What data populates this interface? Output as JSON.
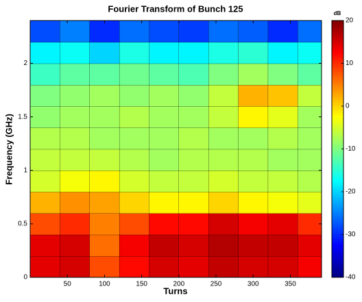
{
  "chart_data": {
    "type": "contour",
    "title": "Fourier Transform of Bunch 125",
    "x_label": "Turns",
    "y_label": "Frequency (GHz)",
    "colorbar_label": "dB",
    "xlim": [
      0,
      392
    ],
    "xticks": [
      50,
      100,
      150,
      200,
      250,
      300,
      350
    ],
    "ylim": [
      0,
      2.4
    ],
    "yticks": [
      0,
      0.5,
      1,
      1.5,
      2
    ],
    "zlim": [
      -40,
      20
    ],
    "zticks": [
      -40,
      -30,
      -20,
      -10,
      0,
      10,
      20
    ],
    "colormap": "jet",
    "x": [
      20,
      60,
      100,
      140,
      180,
      220,
      260,
      300,
      340,
      380
    ],
    "y": [
      0.1,
      0.3,
      0.5,
      0.7,
      0.9,
      1.1,
      1.3,
      1.5,
      1.7,
      1.9,
      2.1,
      2.3
    ],
    "z": [
      [
        14,
        15,
        8,
        12,
        15,
        14,
        16,
        15,
        15,
        13
      ],
      [
        14,
        15,
        6,
        13,
        16,
        15,
        17,
        16,
        16,
        14
      ],
      [
        8,
        10,
        5,
        8,
        12,
        12,
        15,
        13,
        14,
        10
      ],
      [
        2,
        4,
        3,
        0,
        -2,
        -2,
        0,
        -2,
        -3,
        -4
      ],
      [
        -5,
        -3,
        -2,
        -5,
        -6,
        -6,
        -5,
        -6,
        -6,
        -7
      ],
      [
        -6,
        -6,
        -6,
        -7,
        -8,
        -7,
        -7,
        -7,
        -8,
        -8
      ],
      [
        -7,
        -7,
        -8,
        -8,
        -8,
        -7,
        -8,
        -8,
        -7,
        -8
      ],
      [
        -9,
        -8,
        -8,
        -7,
        -8,
        -8,
        -6,
        -2,
        -4,
        -8
      ],
      [
        -10,
        -9,
        -8,
        -9,
        -8,
        -9,
        -6,
        2,
        1,
        -6
      ],
      [
        -14,
        -12,
        -12,
        -11,
        -12,
        -13,
        -10,
        -8,
        -10,
        -12
      ],
      [
        -18,
        -17,
        -20,
        -16,
        -18,
        -18,
        -16,
        -15,
        -18,
        -17
      ],
      [
        -28,
        -25,
        -30,
        -26,
        -28,
        -29,
        -26,
        -27,
        -30,
        -26
      ]
    ]
  }
}
